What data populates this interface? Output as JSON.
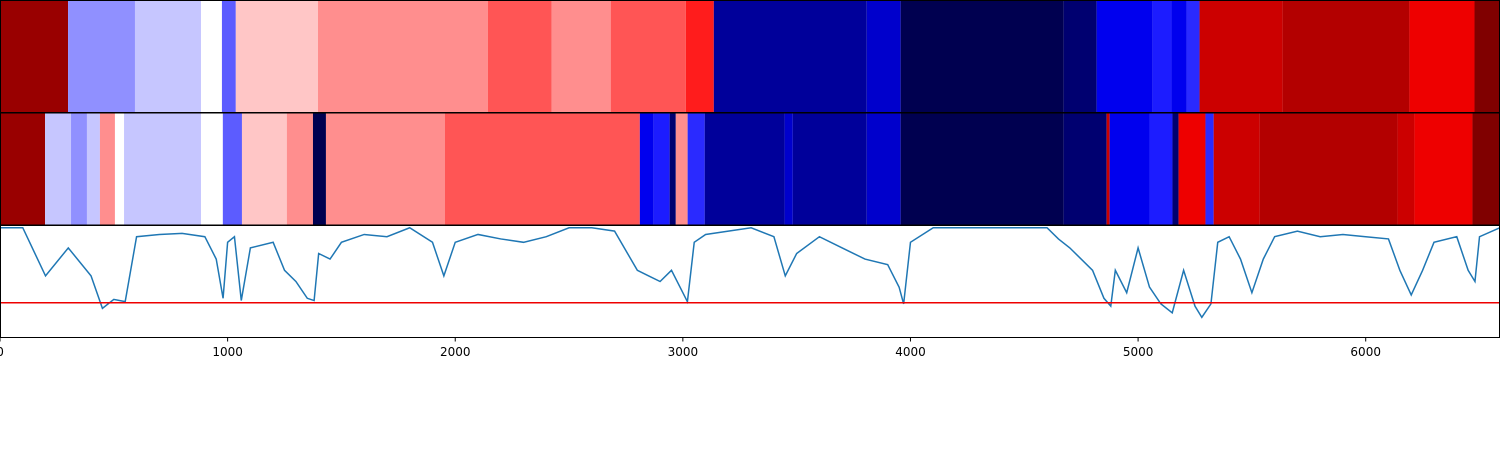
{
  "chart_data": [
    {
      "type": "segments",
      "xlim": [
        0,
        6590
      ],
      "segments": [
        {
          "start": 0,
          "end": 299,
          "color": "#990000"
        },
        {
          "start": 299,
          "end": 593,
          "color": "#9090ff"
        },
        {
          "start": 593,
          "end": 883,
          "color": "#c6c6ff"
        },
        {
          "start": 883,
          "end": 975,
          "color": "#ffffff"
        },
        {
          "start": 975,
          "end": 1036,
          "color": "#5c5cff"
        },
        {
          "start": 1036,
          "end": 1397,
          "color": "#ffc6c6"
        },
        {
          "start": 1397,
          "end": 2143,
          "color": "#ff8e8e"
        },
        {
          "start": 2143,
          "end": 2424,
          "color": "#ff5555"
        },
        {
          "start": 2424,
          "end": 2683,
          "color": "#ff8e8e"
        },
        {
          "start": 2683,
          "end": 3013,
          "color": "#ff5555"
        },
        {
          "start": 3013,
          "end": 3136,
          "color": "#ff1c1c"
        },
        {
          "start": 3136,
          "end": 3808,
          "color": "#00009a"
        },
        {
          "start": 3808,
          "end": 3957,
          "color": "#0000cc"
        },
        {
          "start": 3957,
          "end": 4673,
          "color": "#000050"
        },
        {
          "start": 4673,
          "end": 4818,
          "color": "#000070"
        },
        {
          "start": 4818,
          "end": 5064,
          "color": "#0000ee"
        },
        {
          "start": 5064,
          "end": 5147,
          "color": "#1c1cff"
        },
        {
          "start": 5147,
          "end": 5213,
          "color": "#0000ee"
        },
        {
          "start": 5213,
          "end": 5270,
          "color": "#2a2aff"
        },
        {
          "start": 5270,
          "end": 5635,
          "color": "#cc0000"
        },
        {
          "start": 5635,
          "end": 6192,
          "color": "#b30000"
        },
        {
          "start": 6192,
          "end": 6478,
          "color": "#ee0000"
        },
        {
          "start": 6478,
          "end": 6590,
          "color": "#800000"
        }
      ]
    },
    {
      "type": "segments",
      "xlim": [
        0,
        6590
      ],
      "segments": [
        {
          "start": 0,
          "end": 198,
          "color": "#990000"
        },
        {
          "start": 198,
          "end": 312,
          "color": "#c6c6ff"
        },
        {
          "start": 312,
          "end": 382,
          "color": "#9090ff"
        },
        {
          "start": 382,
          "end": 439,
          "color": "#c6c6ff"
        },
        {
          "start": 439,
          "end": 505,
          "color": "#ff8e8e"
        },
        {
          "start": 505,
          "end": 545,
          "color": "#ffffff"
        },
        {
          "start": 545,
          "end": 883,
          "color": "#c6c6ff"
        },
        {
          "start": 883,
          "end": 979,
          "color": "#ffffff"
        },
        {
          "start": 979,
          "end": 1063,
          "color": "#5c5cff"
        },
        {
          "start": 1063,
          "end": 1260,
          "color": "#ffc6c6"
        },
        {
          "start": 1260,
          "end": 1375,
          "color": "#ff8e8e"
        },
        {
          "start": 1375,
          "end": 1432,
          "color": "#000050"
        },
        {
          "start": 1432,
          "end": 1954,
          "color": "#ff8e8e"
        },
        {
          "start": 1954,
          "end": 2811,
          "color": "#ff5555"
        },
        {
          "start": 2811,
          "end": 2872,
          "color": "#0000ee"
        },
        {
          "start": 2872,
          "end": 2942,
          "color": "#1c1cff"
        },
        {
          "start": 2942,
          "end": 2969,
          "color": "#000070"
        },
        {
          "start": 2969,
          "end": 3021,
          "color": "#ff8e8e"
        },
        {
          "start": 3021,
          "end": 3096,
          "color": "#2a2aff"
        },
        {
          "start": 3096,
          "end": 3447,
          "color": "#00009a"
        },
        {
          "start": 3447,
          "end": 3483,
          "color": "#0000cc"
        },
        {
          "start": 3483,
          "end": 3808,
          "color": "#00009a"
        },
        {
          "start": 3808,
          "end": 3957,
          "color": "#0000cc"
        },
        {
          "start": 3957,
          "end": 4673,
          "color": "#000050"
        },
        {
          "start": 4673,
          "end": 4862,
          "color": "#000070"
        },
        {
          "start": 4862,
          "end": 4875,
          "color": "#cc0000"
        },
        {
          "start": 4875,
          "end": 5050,
          "color": "#0000ee"
        },
        {
          "start": 5050,
          "end": 5151,
          "color": "#1c1cff"
        },
        {
          "start": 5151,
          "end": 5178,
          "color": "#000070"
        },
        {
          "start": 5178,
          "end": 5296,
          "color": "#ee0000"
        },
        {
          "start": 5296,
          "end": 5332,
          "color": "#2a2aff"
        },
        {
          "start": 5332,
          "end": 5534,
          "color": "#cc0000"
        },
        {
          "start": 5534,
          "end": 6140,
          "color": "#b30000"
        },
        {
          "start": 6140,
          "end": 6214,
          "color": "#cc0000"
        },
        {
          "start": 6214,
          "end": 6469,
          "color": "#ee0000"
        },
        {
          "start": 6469,
          "end": 6590,
          "color": "#800000"
        }
      ]
    },
    {
      "type": "line",
      "xlim": [
        0,
        6590
      ],
      "ylim": [
        0,
        1
      ],
      "xticks": [
        0,
        1000,
        2000,
        3000,
        4000,
        5000,
        6000
      ],
      "threshold": 0.31,
      "threshold_color": "#ee0000",
      "series": [
        {
          "color": "#1f77b4",
          "x": [
            0,
            100,
            200,
            300,
            400,
            450,
            500,
            550,
            600,
            700,
            800,
            900,
            950,
            980,
            1000,
            1030,
            1060,
            1100,
            1200,
            1250,
            1300,
            1350,
            1380,
            1400,
            1450,
            1500,
            1600,
            1700,
            1800,
            1900,
            1950,
            2000,
            2100,
            2200,
            2300,
            2400,
            2500,
            2600,
            2700,
            2800,
            2850,
            2900,
            2950,
            3000,
            3020,
            3050,
            3100,
            3200,
            3300,
            3400,
            3450,
            3500,
            3600,
            3700,
            3800,
            3900,
            3950,
            3970,
            4000,
            4100,
            4200,
            4400,
            4600,
            4650,
            4700,
            4800,
            4850,
            4880,
            4900,
            4950,
            5000,
            5050,
            5100,
            5150,
            5200,
            5250,
            5280,
            5320,
            5350,
            5400,
            5450,
            5500,
            5550,
            5600,
            5700,
            5800,
            5900,
            6000,
            6100,
            6150,
            6200,
            6250,
            6300,
            6400,
            6450,
            6480,
            6500,
            6590
          ],
          "values": [
            0.98,
            0.98,
            0.55,
            0.8,
            0.55,
            0.26,
            0.34,
            0.32,
            0.9,
            0.92,
            0.93,
            0.9,
            0.7,
            0.35,
            0.85,
            0.9,
            0.33,
            0.8,
            0.85,
            0.6,
            0.5,
            0.35,
            0.33,
            0.75,
            0.7,
            0.85,
            0.92,
            0.9,
            0.98,
            0.85,
            0.55,
            0.85,
            0.92,
            0.88,
            0.85,
            0.9,
            0.98,
            0.98,
            0.95,
            0.6,
            0.55,
            0.5,
            0.6,
            0.4,
            0.32,
            0.85,
            0.92,
            0.95,
            0.98,
            0.9,
            0.55,
            0.75,
            0.9,
            0.8,
            0.7,
            0.65,
            0.45,
            0.3,
            0.85,
            0.98,
            0.98,
            0.98,
            0.98,
            0.88,
            0.8,
            0.6,
            0.35,
            0.28,
            0.6,
            0.4,
            0.8,
            0.45,
            0.3,
            0.22,
            0.6,
            0.28,
            0.18,
            0.3,
            0.85,
            0.9,
            0.7,
            0.4,
            0.7,
            0.9,
            0.95,
            0.9,
            0.92,
            0.9,
            0.88,
            0.6,
            0.38,
            0.6,
            0.85,
            0.9,
            0.6,
            0.5,
            0.9,
            0.98
          ]
        }
      ]
    }
  ]
}
